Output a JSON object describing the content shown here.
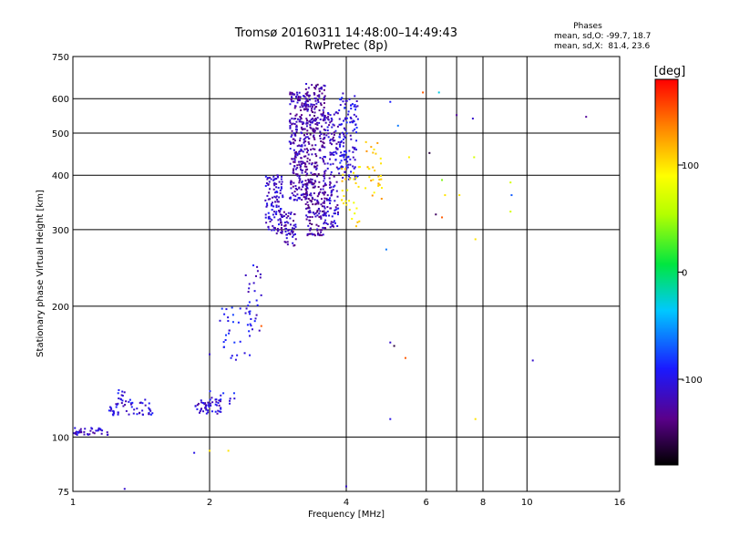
{
  "chart_data": {
    "type": "scatter",
    "title": "Tromsø 20160311 14:48:00–14:49:43",
    "subtitle": "RwPretec (8p)",
    "xlabel": "Frequency [MHz]",
    "ylabel": "Stationary phase Virtual Height [km]",
    "x_scale": "log2",
    "y_scale": "log",
    "xlim": [
      1,
      16
    ],
    "ylim": [
      75,
      750
    ],
    "x_ticks": [
      1,
      2,
      4,
      6,
      8,
      10,
      16
    ],
    "x_tick_labels": [
      "1",
      "2",
      "4",
      "6",
      "8",
      "10",
      "16"
    ],
    "y_ticks": [
      75,
      100,
      200,
      300,
      400,
      500,
      600,
      750
    ],
    "y_tick_labels": [
      "75",
      "100",
      "200",
      "300",
      "400",
      "500",
      "600",
      "750"
    ],
    "grid": true,
    "grid_x": [
      2,
      4,
      6,
      7,
      8,
      10
    ],
    "grid_y": [
      100,
      200,
      300,
      400,
      500,
      600
    ],
    "legend": {
      "title": "Phases",
      "line1": "mean, sd,O: -99.7, 18.7",
      "line2": "mean, sd,X:  81.4, 23.6",
      "placement": "top-right"
    },
    "colorbar": {
      "label": "[deg]",
      "range": [
        -180,
        180
      ],
      "ticks": [
        100,
        0,
        -100
      ],
      "tick_labels": [
        "100",
        "0",
        "-100"
      ],
      "colormap": "rainbow"
    },
    "point_groups": [
      {
        "x": [
          1.0,
          1.2
        ],
        "y": [
          101,
          105
        ],
        "n": 40,
        "phase": -110
      },
      {
        "x": [
          1.2,
          1.5
        ],
        "y": [
          112,
          122
        ],
        "n": 55,
        "phase": -105
      },
      {
        "x": [
          1.25,
          1.3
        ],
        "y": [
          120,
          130
        ],
        "n": 10,
        "phase": -100
      },
      {
        "x": [
          1.85,
          2.15
        ],
        "y": [
          113,
          122
        ],
        "n": 45,
        "phase": -110
      },
      {
        "x": [
          2.0,
          2.3
        ],
        "y": [
          118,
          128
        ],
        "n": 15,
        "phase": -100
      },
      {
        "x": [
          2.1,
          2.5
        ],
        "y": [
          150,
          200
        ],
        "n": 30,
        "phase": -95
      },
      {
        "x": [
          2.4,
          2.6
        ],
        "y": [
          170,
          250
        ],
        "n": 30,
        "phase": -105
      },
      {
        "x": [
          2.65,
          2.9
        ],
        "y": [
          290,
          400
        ],
        "n": 110,
        "phase": -110
      },
      {
        "x": [
          2.85,
          3.1
        ],
        "y": [
          275,
          330
        ],
        "n": 60,
        "phase": -120
      },
      {
        "x": [
          3.0,
          3.3
        ],
        "y": [
          350,
          620
        ],
        "n": 260,
        "phase": -120
      },
      {
        "x": [
          3.25,
          3.6
        ],
        "y": [
          290,
          650
        ],
        "n": 330,
        "phase": -125
      },
      {
        "x": [
          3.55,
          3.85
        ],
        "y": [
          300,
          560
        ],
        "n": 150,
        "phase": -115
      },
      {
        "x": [
          3.85,
          4.25
        ],
        "y": [
          390,
          620
        ],
        "n": 130,
        "phase": -100
      },
      {
        "x": [
          3.9,
          4.3
        ],
        "y": [
          300,
          420
        ],
        "n": 30,
        "phase": 100
      },
      {
        "x": [
          4.4,
          4.8
        ],
        "y": [
          350,
          480
        ],
        "n": 30,
        "phase": 110
      }
    ],
    "scattered_points": [
      {
        "x": 5.0,
        "y": 590,
        "phase": -90
      },
      {
        "x": 5.2,
        "y": 520,
        "phase": -60
      },
      {
        "x": 5.5,
        "y": 440,
        "phase": 95
      },
      {
        "x": 5.9,
        "y": 620,
        "phase": 150
      },
      {
        "x": 6.1,
        "y": 450,
        "phase": -160
      },
      {
        "x": 6.3,
        "y": 325,
        "phase": -150
      },
      {
        "x": 6.4,
        "y": 620,
        "phase": -30
      },
      {
        "x": 6.5,
        "y": 390,
        "phase": 40
      },
      {
        "x": 6.6,
        "y": 360,
        "phase": 100
      },
      {
        "x": 6.5,
        "y": 320,
        "phase": 150
      },
      {
        "x": 7.0,
        "y": 550,
        "phase": -130
      },
      {
        "x": 7.1,
        "y": 360,
        "phase": 100
      },
      {
        "x": 7.6,
        "y": 540,
        "phase": -110
      },
      {
        "x": 7.65,
        "y": 440,
        "phase": 70
      },
      {
        "x": 7.7,
        "y": 285,
        "phase": 100
      },
      {
        "x": 7.7,
        "y": 110,
        "phase": 100
      },
      {
        "x": 9.2,
        "y": 385,
        "phase": 70
      },
      {
        "x": 9.25,
        "y": 360,
        "phase": -70
      },
      {
        "x": 9.2,
        "y": 330,
        "phase": 70
      },
      {
        "x": 10.3,
        "y": 150,
        "phase": -110
      },
      {
        "x": 13.5,
        "y": 545,
        "phase": -130
      },
      {
        "x": 4.9,
        "y": 270,
        "phase": -60
      },
      {
        "x": 5.0,
        "y": 165,
        "phase": -110
      },
      {
        "x": 5.1,
        "y": 162,
        "phase": -160
      },
      {
        "x": 5.4,
        "y": 152,
        "phase": 150
      },
      {
        "x": 5.0,
        "y": 110,
        "phase": -100
      },
      {
        "x": 1.3,
        "y": 76,
        "phase": -110
      },
      {
        "x": 4.0,
        "y": 77,
        "phase": -110
      },
      {
        "x": 1.85,
        "y": 92,
        "phase": -100
      },
      {
        "x": 2.0,
        "y": 93,
        "phase": 100
      },
      {
        "x": 2.2,
        "y": 93,
        "phase": 100
      },
      {
        "x": 2.0,
        "y": 155,
        "phase": -110
      },
      {
        "x": 2.6,
        "y": 180,
        "phase": 150
      }
    ]
  }
}
